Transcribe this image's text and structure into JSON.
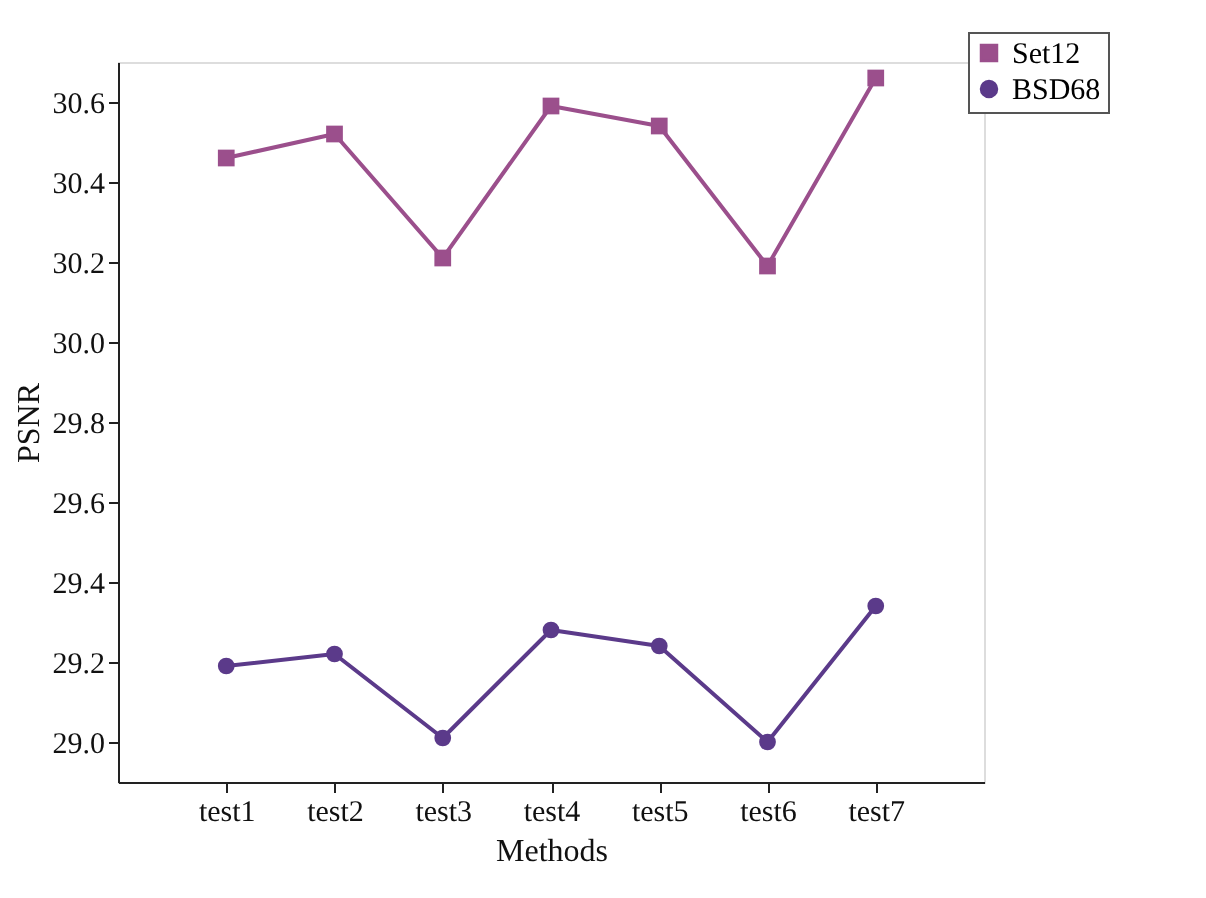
{
  "chart_data": {
    "type": "line",
    "xlabel": "Methods",
    "ylabel": "PSNR",
    "categories": [
      "test1",
      "test2",
      "test3",
      "test4",
      "test5",
      "test6",
      "test7"
    ],
    "series": [
      {
        "name": "Set12",
        "color": "#9b4f8c",
        "marker": "square",
        "values": [
          30.46,
          30.52,
          30.21,
          30.59,
          30.54,
          30.19,
          30.66
        ]
      },
      {
        "name": "BSD68",
        "color": "#5b3a8a",
        "marker": "circle",
        "values": [
          29.19,
          29.22,
          29.01,
          29.28,
          29.24,
          29.0,
          29.34
        ]
      }
    ],
    "ylim": [
      28.9,
      30.7
    ],
    "yticks": [
      {
        "value": 29.0,
        "label": "29.0"
      },
      {
        "value": 29.2,
        "label": "29.2"
      },
      {
        "value": 29.4,
        "label": "29.4"
      },
      {
        "value": 29.6,
        "label": "29.6"
      },
      {
        "value": 29.8,
        "label": "29.8"
      },
      {
        "value": 30.0,
        "label": "30.0"
      },
      {
        "value": 30.2,
        "label": "30.2"
      },
      {
        "value": 30.4,
        "label": "30.4"
      },
      {
        "value": 30.6,
        "label": "30.6"
      }
    ],
    "grid": false,
    "legend": "top right",
    "line_style": "solid"
  }
}
